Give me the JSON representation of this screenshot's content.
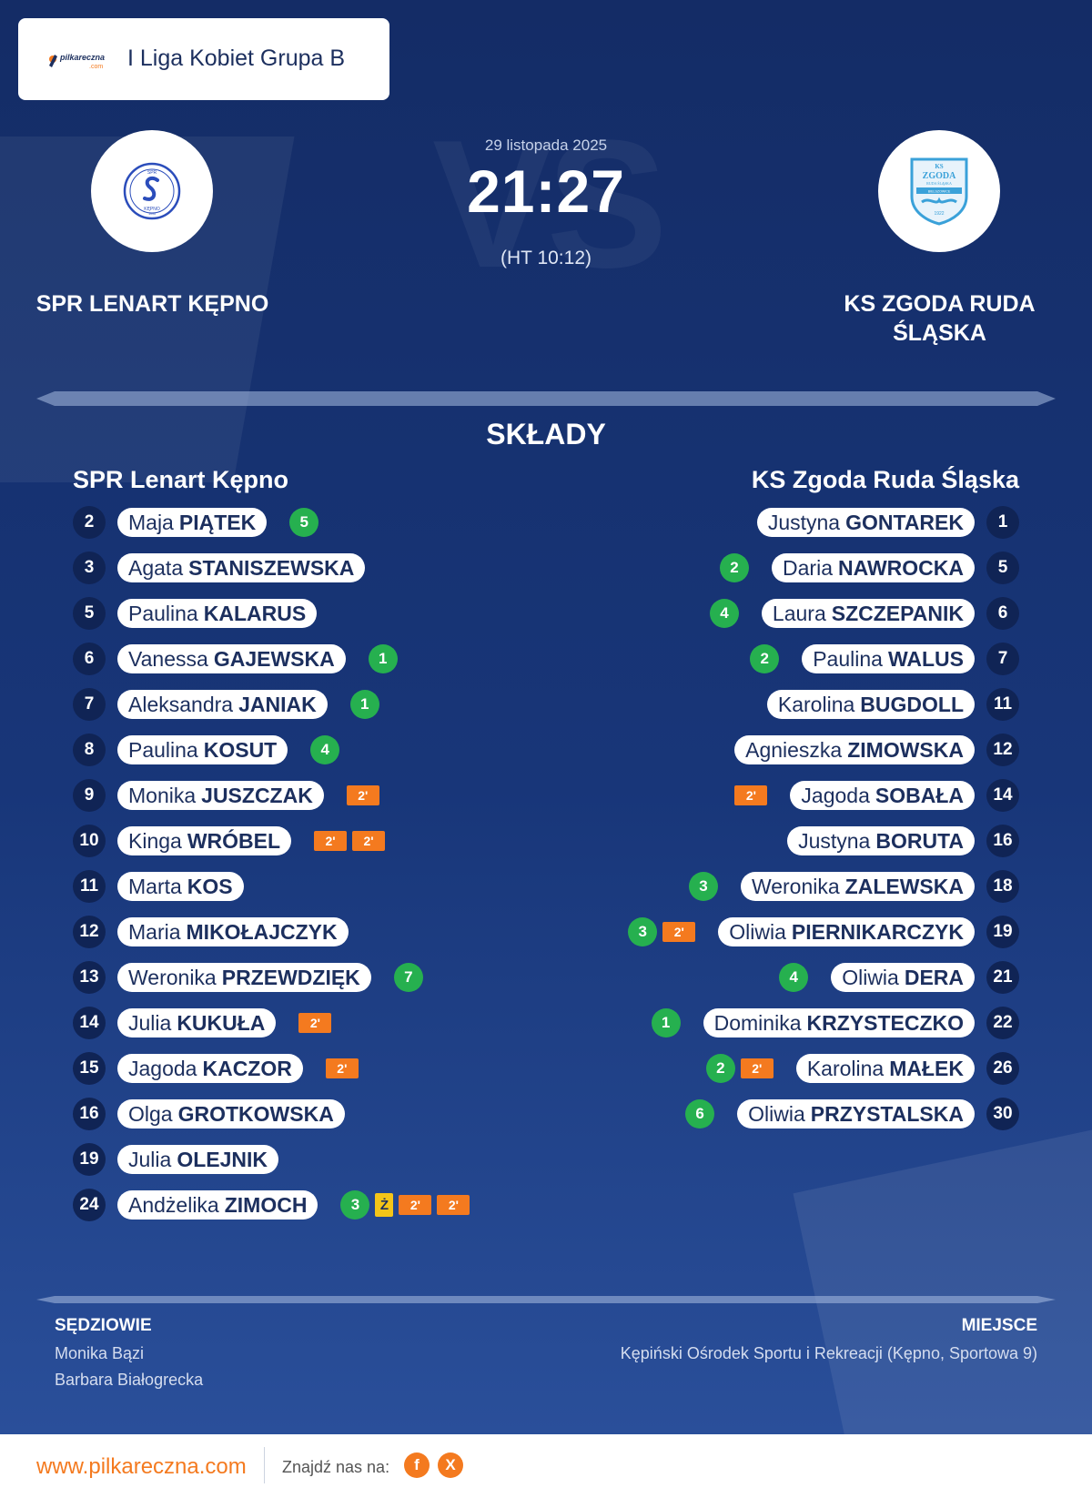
{
  "header": {
    "brand_text": "pilkareczna",
    "brand_sub": ".com",
    "league": "I Liga Kobiet Grupa B"
  },
  "match": {
    "date": "29 listopada 2025",
    "score": "21:27",
    "halftime": "(HT 10:12)",
    "watermark": "VS"
  },
  "home": {
    "name": "SPR LENART KĘPNO",
    "logo_text_top": "SPR",
    "logo_text_bottom": "KĘPNO",
    "logo_year": "1993"
  },
  "away": {
    "name_line1": "KS ZGODA RUDA",
    "name_line2": "ŚLĄSKA",
    "logo_line1": "KS",
    "logo_line2": "ZGODA",
    "logo_line3": "RUDA ŚLĄSKA",
    "logo_line4": "BIELSZOWICE",
    "logo_year": "1922"
  },
  "squads": {
    "title": "SKŁADY",
    "home_title": "SPR Lenart Kępno",
    "away_title": "KS Zgoda Ruda Śląska",
    "home_players": [
      {
        "num": "2",
        "first": "Maja",
        "last": "PIĄTEK",
        "badges": [
          {
            "type": "goal",
            "value": "5"
          }
        ]
      },
      {
        "num": "3",
        "first": "Agata",
        "last": "STANISZEWSKA",
        "badges": []
      },
      {
        "num": "5",
        "first": "Paulina",
        "last": "KALARUS",
        "badges": []
      },
      {
        "num": "6",
        "first": "Vanessa",
        "last": "GAJEWSKA",
        "badges": [
          {
            "type": "goal",
            "value": "1"
          }
        ]
      },
      {
        "num": "7",
        "first": "Aleksandra",
        "last": "JANIAK",
        "badges": [
          {
            "type": "goal",
            "value": "1"
          }
        ]
      },
      {
        "num": "8",
        "first": "Paulina",
        "last": "KOSUT",
        "badges": [
          {
            "type": "goal",
            "value": "4"
          }
        ]
      },
      {
        "num": "9",
        "first": "Monika",
        "last": "JUSZCZAK",
        "badges": [
          {
            "type": "susp",
            "value": "2'"
          }
        ]
      },
      {
        "num": "10",
        "first": "Kinga",
        "last": "WRÓBEL",
        "badges": [
          {
            "type": "susp",
            "value": "2'"
          },
          {
            "type": "susp",
            "value": "2'"
          }
        ]
      },
      {
        "num": "11",
        "first": "Marta",
        "last": "KOS",
        "badges": []
      },
      {
        "num": "12",
        "first": "Maria",
        "last": "MIKOŁAJCZYK",
        "badges": []
      },
      {
        "num": "13",
        "first": "Weronika",
        "last": "PRZEWDZIĘK",
        "badges": [
          {
            "type": "goal",
            "value": "7"
          }
        ]
      },
      {
        "num": "14",
        "first": "Julia",
        "last": "KUKUŁA",
        "badges": [
          {
            "type": "susp",
            "value": "2'"
          }
        ]
      },
      {
        "num": "15",
        "first": "Jagoda",
        "last": "KACZOR",
        "badges": [
          {
            "type": "susp",
            "value": "2'"
          }
        ]
      },
      {
        "num": "16",
        "first": "Olga",
        "last": "GROTKOWSKA",
        "badges": []
      },
      {
        "num": "19",
        "first": "Julia",
        "last": "OLEJNIK",
        "badges": []
      },
      {
        "num": "24",
        "first": "Andżelika",
        "last": "ZIMOCH",
        "badges": [
          {
            "type": "goal",
            "value": "3"
          },
          {
            "type": "yellow",
            "value": "Ż"
          },
          {
            "type": "susp",
            "value": "2'"
          },
          {
            "type": "susp",
            "value": "2'"
          }
        ]
      }
    ],
    "away_players": [
      {
        "num": "1",
        "first": "Justyna",
        "last": "GONTAREK",
        "badges": []
      },
      {
        "num": "5",
        "first": "Daria",
        "last": "NAWROCKA",
        "badges": [
          {
            "type": "goal",
            "value": "2"
          }
        ]
      },
      {
        "num": "6",
        "first": "Laura",
        "last": "SZCZEPANIK",
        "badges": [
          {
            "type": "goal",
            "value": "4"
          }
        ]
      },
      {
        "num": "7",
        "first": "Paulina",
        "last": "WALUS",
        "badges": [
          {
            "type": "goal",
            "value": "2"
          }
        ]
      },
      {
        "num": "11",
        "first": "Karolina",
        "last": "BUGDOLL",
        "badges": []
      },
      {
        "num": "12",
        "first": "Agnieszka",
        "last": "ZIMOWSKA",
        "badges": []
      },
      {
        "num": "14",
        "first": "Jagoda",
        "last": "SOBAŁA",
        "badges": [
          {
            "type": "susp",
            "value": "2'"
          }
        ]
      },
      {
        "num": "16",
        "first": "Justyna",
        "last": "BORUTA",
        "badges": []
      },
      {
        "num": "18",
        "first": "Weronika",
        "last": "ZALEWSKA",
        "badges": [
          {
            "type": "goal",
            "value": "3"
          }
        ]
      },
      {
        "num": "19",
        "first": "Oliwia",
        "last": "PIERNIKARCZYK",
        "badges": [
          {
            "type": "susp",
            "value": "2'"
          },
          {
            "type": "goal",
            "value": "3"
          }
        ]
      },
      {
        "num": "21",
        "first": "Oliwia",
        "last": "DERA",
        "badges": [
          {
            "type": "goal",
            "value": "4"
          }
        ]
      },
      {
        "num": "22",
        "first": "Dominika",
        "last": "KRZYSTECZKO",
        "badges": [
          {
            "type": "goal",
            "value": "1"
          }
        ]
      },
      {
        "num": "26",
        "first": "Karolina",
        "last": "MAŁEK",
        "badges": [
          {
            "type": "susp",
            "value": "2'"
          },
          {
            "type": "goal",
            "value": "2"
          }
        ]
      },
      {
        "num": "30",
        "first": "Oliwia",
        "last": "PRZYSTALSKA",
        "badges": [
          {
            "type": "goal",
            "value": "6"
          }
        ]
      }
    ]
  },
  "officials": {
    "referees_label": "SĘDZIOWIE",
    "referees": [
      "Monika Bązi",
      "Barbara Białogrecka"
    ],
    "venue_label": "MIEJSCE",
    "venue": "Kępiński Ośrodek Sportu i Rekreacji (Kępno, Sportowa 9)"
  },
  "footer": {
    "url": "www.pilkareczna.com",
    "find_us": "Znajdź nas na:",
    "facebook": "f",
    "x": "X"
  },
  "colors": {
    "background": "#183679",
    "goal": "#26b04f",
    "suspension": "#f47a1f",
    "yellow_card": "#f5c518",
    "accent": "#f47a1f"
  }
}
